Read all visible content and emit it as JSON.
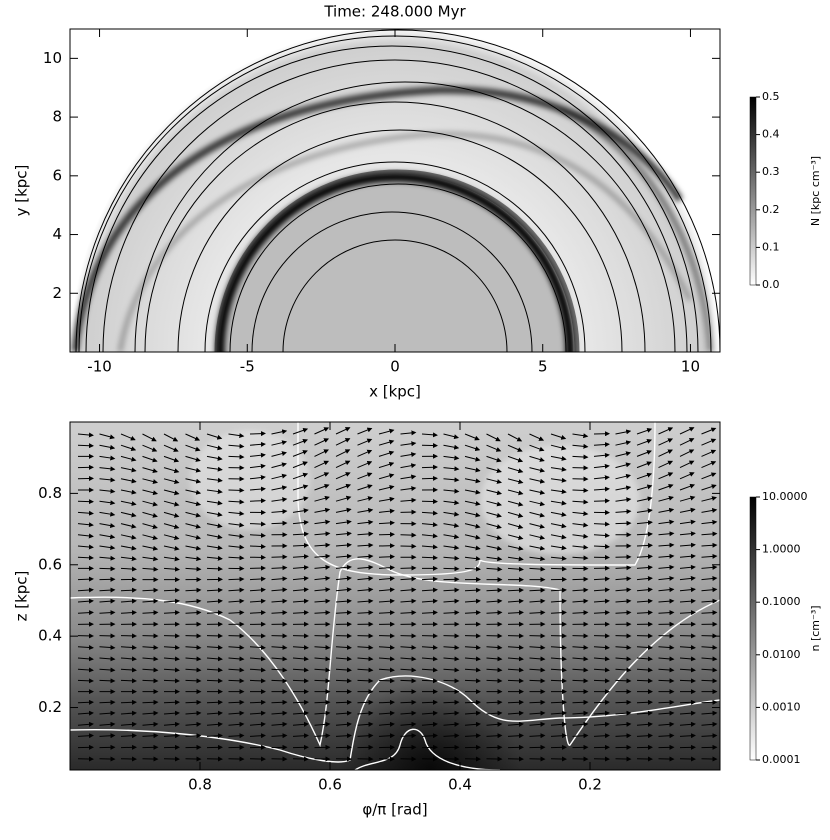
{
  "chart_data": [
    {
      "type": "image",
      "title": "Time: 248.000 Myr",
      "xlabel": "x [kpc]",
      "ylabel": "y [kpc]",
      "xlim": [
        -11,
        11
      ],
      "ylim": [
        0,
        11
      ],
      "xticks": [
        -10,
        -5,
        0,
        5,
        10
      ],
      "yticks": [
        2,
        4,
        6,
        8,
        10
      ],
      "colorbar": {
        "label": "N [kpc cm⁻³]",
        "lim": [
          0,
          0.5
        ],
        "log": false,
        "ticks": [
          {
            "value": 0,
            "label": "0.0"
          },
          0.1,
          0.2,
          0.3,
          0.4,
          0.5
        ]
      }
    },
    {
      "type": "vector-field",
      "xlabel": "φ/π [rad]",
      "ylabel": "z [kpc]",
      "xlim": [
        1,
        0
      ],
      "ylim": [
        0.025,
        1.0
      ],
      "xticks": [
        0.8,
        0.6,
        0.4,
        0.2
      ],
      "yticks": [
        0.2,
        0.4,
        0.6,
        0.8
      ],
      "colorbar": {
        "label": "n [cm⁻³]",
        "lim": [
          0.0001,
          10
        ],
        "log": true,
        "ticks": [
          {
            "value": 10,
            "label": "10.0000"
          },
          {
            "value": 1,
            "label": "1.0000"
          },
          {
            "value": 0.1,
            "label": "0.1000"
          },
          {
            "value": 0.01,
            "label": "0.0100"
          },
          {
            "value": 0.001,
            "label": "0.0010"
          },
          {
            "value": 0.0001,
            "label": "0.0001"
          }
        ]
      }
    }
  ]
}
